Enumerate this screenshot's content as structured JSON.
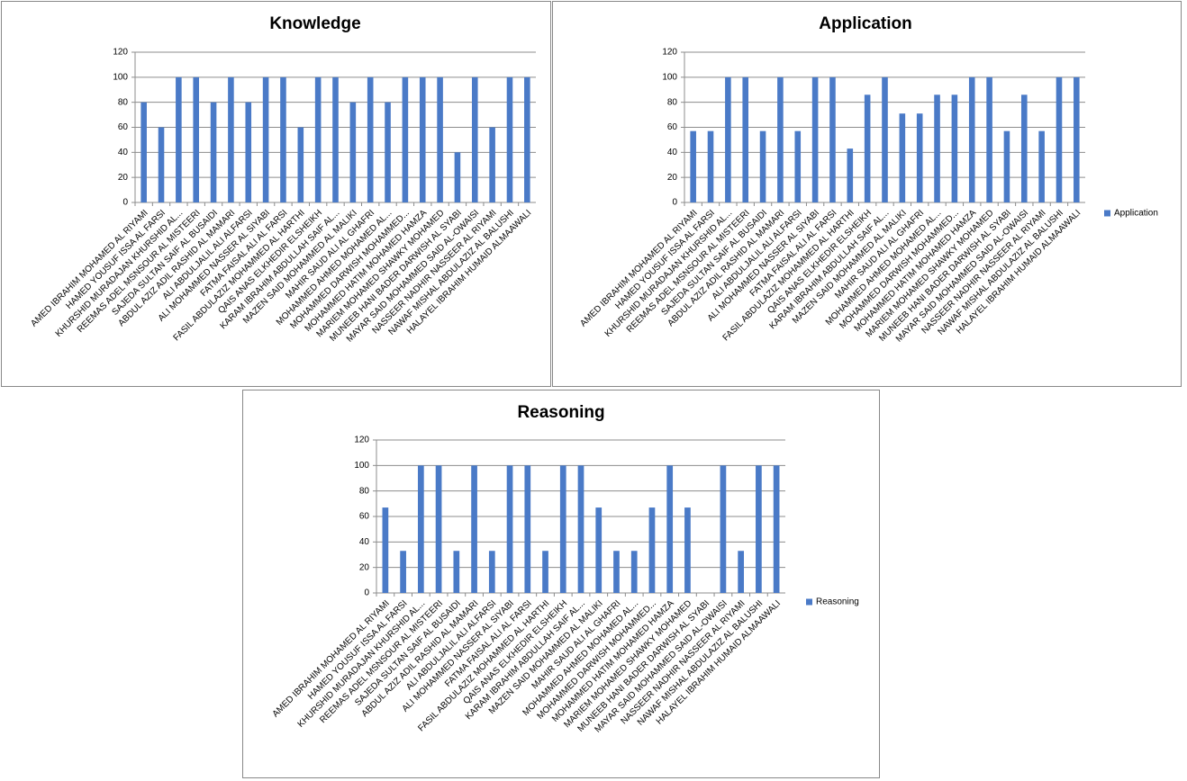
{
  "chart_data": [
    {
      "type": "bar",
      "title": "Knowledge",
      "categories": [
        "AMED IBRAHIM MOHAMED AL RIYAMI",
        "HAMED YOUSUF ISSA AL FARSI",
        "KHURSHID MURADAJAN KHURSHID AL...",
        "REEMAS ADEL MSNSOUR AL MISTEERI",
        "SAJEDA SULTAN SAIF AL BUSAIDI",
        "ABDUL AZIZ ADIL RASHID AL MAMARI",
        "ALI ABDULJALIL ALI ALFARSI",
        "ALI MOHAMMED NASSER AL SIYABI",
        "FATMA FAISAL ALI AL FARSI",
        "FASIL ABDULAZIZ MOHAMMED AL HARTHI",
        "QAIS ANAS ELKHEDIR ELSHEIKH",
        "KARAM IBRAHIM ABDULLAH SAIF AL...",
        "MAZEN SAID MOHAMMED AL MALIKI",
        "MAHIR SAUD ALI AL GHAFRI",
        "MOHAMMED AHMED MOHAMED AL...",
        "MOHAMMED DARWISH MOHAMMED...",
        "MOHAMMED HATIM MOHAMED HAMZA",
        "MARIEM MOHAMED SHAWKY MOHAMED",
        "MUNEEB HANI BADER DARWISH AL SYABI",
        "MAYAR SAID MOHAMMED SAID AL-OWAISI",
        "NASSEER NADHIR NASSEER AL RIYAMI",
        "NAWAF MISHAL ABDULAZIZ AL BALUSHI",
        "HALAYEL IBRAHIM HUMAID ALMAAWALI"
      ],
      "values": [
        80,
        60,
        100,
        100,
        80,
        100,
        80,
        100,
        100,
        60,
        100,
        100,
        80,
        100,
        80,
        100,
        100,
        100,
        40,
        100,
        60,
        100,
        100
      ],
      "color": "#4a7ac7",
      "ylim": [
        0,
        120
      ],
      "yticks": [
        0,
        20,
        40,
        60,
        80,
        100,
        120
      ],
      "grid": true
    },
    {
      "type": "bar",
      "title": "Application",
      "categories": [
        "AMED IBRAHIM MOHAMED AL RIYAMI",
        "HAMED YOUSUF ISSA AL FARSI",
        "KHURSHID MURADAJAN KHURSHID AL...",
        "REEMAS ADEL MSNSOUR AL MISTEERI",
        "SAJEDA SULTAN SAIF AL BUSAIDI",
        "ABDUL AZIZ ADIL RASHID AL MAMARI",
        "ALI ABDULJALIL ALI ALFARSI",
        "ALI MOHAMMED NASSER AL SIYABI",
        "FATMA FAISAL ALI AL FARSI",
        "FASIL ABDULAZIZ MOHAMMED AL HARTHI",
        "QAIS ANAS ELKHEDIR ELSHEIKH",
        "KARAM IBRAHIM ABDULLAH SAIF AL...",
        "MAZEN SAID MOHAMMED AL MALIKI",
        "MAHIR SAUD ALI AL GHAFRI",
        "MOHAMMED AHMED MOHAMED AL...",
        "MOHAMMED DARWISH MOHAMMED...",
        "MOHAMMED HATIM MOHAMED HAMZA",
        "MARIEM MOHAMED SHAWKY MOHAMED",
        "MUNEEB HANI BADER DARWISH AL SYABI",
        "MAYAR SAID MOHAMMED SAID AL-OWAISI",
        "NASSEER NADHIR NASSEER AL RIYAMI",
        "NAWAF MISHAL ABDULAZIZ AL BALUSHI",
        "HALAYEL IBRAHIM HUMAID ALMAAWALI"
      ],
      "series": [
        {
          "name": "Application",
          "color": "#4a7ac7",
          "values": [
            57,
            57,
            100,
            100,
            57,
            100,
            57,
            100,
            100,
            43,
            86,
            100,
            71,
            71,
            86,
            86,
            100,
            100,
            57,
            86,
            57,
            100,
            100
          ]
        }
      ],
      "ylim": [
        0,
        120
      ],
      "yticks": [
        0,
        20,
        40,
        60,
        80,
        100,
        120
      ],
      "grid": true,
      "legend": "right"
    },
    {
      "type": "bar",
      "title": "Reasoning",
      "categories": [
        "AMED IBRAHIM MOHAMED AL RIYAMI",
        "HAMED YOUSUF ISSA AL FARSI",
        "KHURSHID MURADAJAN KHURSHID AL...",
        "REEMAS ADEL MSNSOUR AL MISTEERI",
        "SAJEDA SULTAN SAIF AL BUSAIDI",
        "ABDUL AZIZ ADIL RASHID AL MAMARI",
        "ALI ABDULJALIL ALI ALFARSI",
        "ALI MOHAMMED NASSER AL SIYABI",
        "FATMA FAISAL ALI AL FARSI",
        "FASIL ABDULAZIZ MOHAMMED AL HARTHI",
        "QAIS ANAS ELKHEDIR ELSHEIKH",
        "KARAM IBRAHIM ABDULLAH SAIF AL...",
        "MAZEN SAID MOHAMMED AL MALIKI",
        "MAHIR SAUD ALI AL GHAFRI",
        "MOHAMMED AHMED MOHAMED AL...",
        "MOHAMMED DARWISH MOHAMMED...",
        "MOHAMMED HATIM MOHAMED HAMZA",
        "MARIEM MOHAMED SHAWKY MOHAMED",
        "MUNEEB HANI BADER DARWISH AL SYABI",
        "MAYAR SAID MOHAMMED SAID AL-OWAISI",
        "NASSEER NADHIR NASSEER AL RIYAMI",
        "NAWAF MISHAL ABDULAZIZ AL BALUSHI",
        "HALAYEL IBRAHIM HUMAID ALMAAWALI"
      ],
      "series": [
        {
          "name": "Reasoning",
          "color": "#4a7ac7",
          "values": [
            67,
            33,
            100,
            100,
            33,
            100,
            33,
            100,
            100,
            33,
            100,
            100,
            67,
            33,
            33,
            67,
            100,
            67,
            0,
            100,
            33,
            100,
            100
          ]
        }
      ],
      "ylim": [
        0,
        120
      ],
      "yticks": [
        0,
        20,
        40,
        60,
        80,
        100,
        120
      ],
      "grid": true,
      "legend": "right"
    }
  ]
}
